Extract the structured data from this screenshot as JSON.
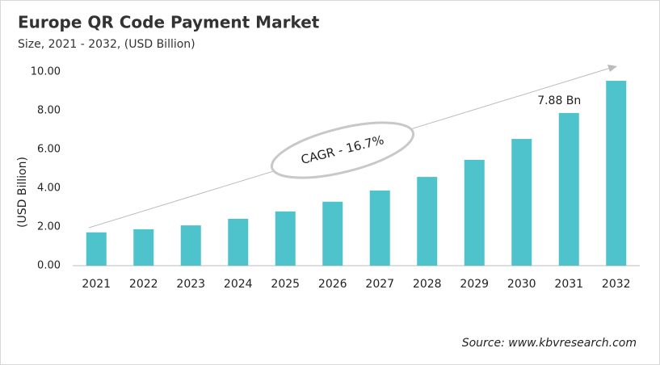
{
  "chart_data": {
    "type": "bar",
    "title": "Europe QR Code Payment Market",
    "subtitle": "Size, 2021 - 2032, (USD Billion)",
    "y_label": "(USD Billion)",
    "categories": [
      "2021",
      "2022",
      "2023",
      "2024",
      "2025",
      "2026",
      "2027",
      "2028",
      "2029",
      "2030",
      "2031",
      "2032"
    ],
    "values": [
      1.72,
      1.88,
      2.08,
      2.42,
      2.8,
      3.3,
      3.88,
      4.58,
      5.46,
      6.54,
      7.88,
      9.54
    ],
    "value_labels": [
      null,
      null,
      null,
      null,
      null,
      null,
      null,
      null,
      null,
      null,
      "7.88 Bn",
      null
    ],
    "color": "#4fc3cc",
    "ylim": [
      0,
      10
    ],
    "yticks": [
      {
        "value": 0,
        "label": "0.00"
      },
      {
        "value": 2,
        "label": "2.00"
      },
      {
        "value": 4,
        "label": "4.00"
      },
      {
        "value": 6,
        "label": "6.00"
      },
      {
        "value": 8,
        "label": "8.00"
      },
      {
        "value": 10,
        "label": "10.00"
      }
    ],
    "grid": false,
    "annotation": "CAGR - 16.7%",
    "source": "Source: www.kbvresearch.com"
  }
}
